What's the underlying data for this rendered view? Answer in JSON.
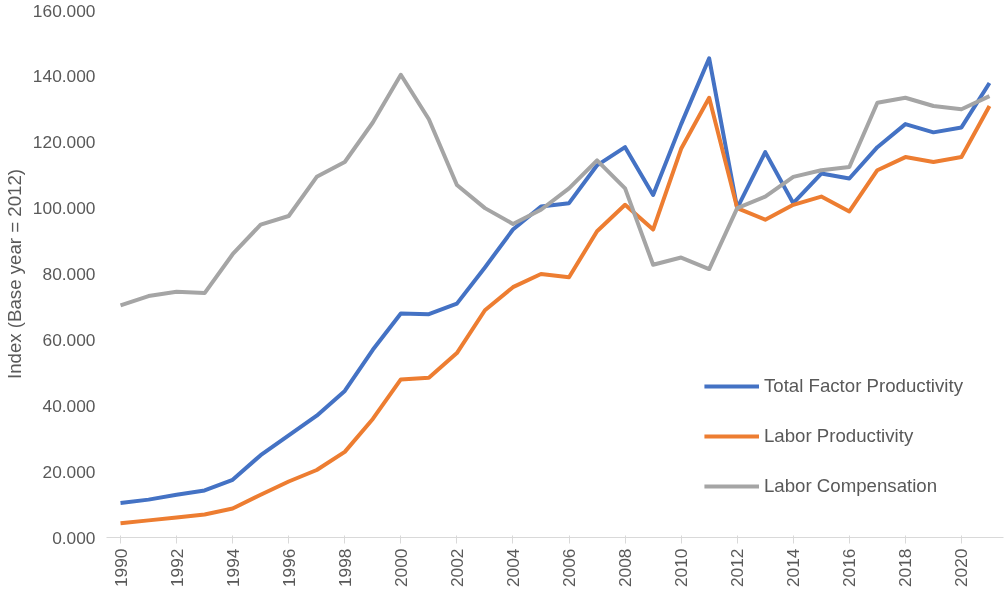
{
  "chart_data": {
    "type": "line",
    "ylabel": "Index (Base year = 2012)",
    "x": [
      1990,
      1991,
      1992,
      1993,
      1994,
      1995,
      1996,
      1997,
      1998,
      1999,
      2000,
      2001,
      2002,
      2003,
      2004,
      2005,
      2006,
      2007,
      2008,
      2009,
      2010,
      2011,
      2012,
      2013,
      2014,
      2015,
      2016,
      2017,
      2018,
      2019,
      2020,
      2021
    ],
    "xlim": [
      1989.5,
      2021.5
    ],
    "xticks": [
      1990,
      1992,
      1994,
      1996,
      1998,
      2000,
      2002,
      2004,
      2006,
      2008,
      2010,
      2012,
      2014,
      2016,
      2018,
      2020
    ],
    "ylim": [
      0,
      160
    ],
    "yticks": [
      {
        "value": 0,
        "label": "0.000"
      },
      {
        "value": 20,
        "label": "20.000"
      },
      {
        "value": 40,
        "label": "40.000"
      },
      {
        "value": 60,
        "label": "60.000"
      },
      {
        "value": 80,
        "label": "80.000"
      },
      {
        "value": 100,
        "label": "100.000"
      },
      {
        "value": 120,
        "label": "120.000"
      },
      {
        "value": 140,
        "label": "140.000"
      },
      {
        "value": 160,
        "label": "160.000"
      }
    ],
    "grid": false,
    "legend": "bottom right",
    "line_style": "solid",
    "marker": "none",
    "series": [
      {
        "name": "Total Factor Productivity",
        "color": "#4472c4",
        "values": [
          10.5,
          11.5,
          13,
          14.3,
          17.5,
          25,
          31,
          37,
          44.5,
          57,
          68,
          67.8,
          71,
          82,
          93.5,
          100.5,
          101.5,
          113,
          118.5,
          104,
          125.5,
          145.5,
          100,
          117,
          101.5,
          110.5,
          109,
          118.5,
          125.5,
          123,
          124.5,
          138
        ]
      },
      {
        "name": "Labor Productivity",
        "color": "#ed7d31",
        "values": [
          4.3,
          5.2,
          6.1,
          7,
          8.8,
          13,
          17,
          20.5,
          26,
          36,
          48,
          48.5,
          56,
          69,
          76,
          80,
          79,
          93,
          101,
          93.5,
          118,
          133.5,
          100,
          96.5,
          101,
          103.5,
          99,
          111.5,
          115.5,
          114,
          115.5,
          131
        ]
      },
      {
        "name": "Labor Compensation",
        "color": "#a5a5a5",
        "values": [
          70.5,
          73.3,
          74.6,
          74.2,
          86,
          95,
          97.6,
          109.5,
          114,
          126,
          140.5,
          127,
          107,
          100,
          95.2,
          99.5,
          106,
          114.5,
          106,
          82.8,
          85,
          81.5,
          100,
          103.5,
          109.5,
          111.5,
          112.5,
          132,
          133.5,
          131,
          130,
          134
        ]
      }
    ]
  }
}
